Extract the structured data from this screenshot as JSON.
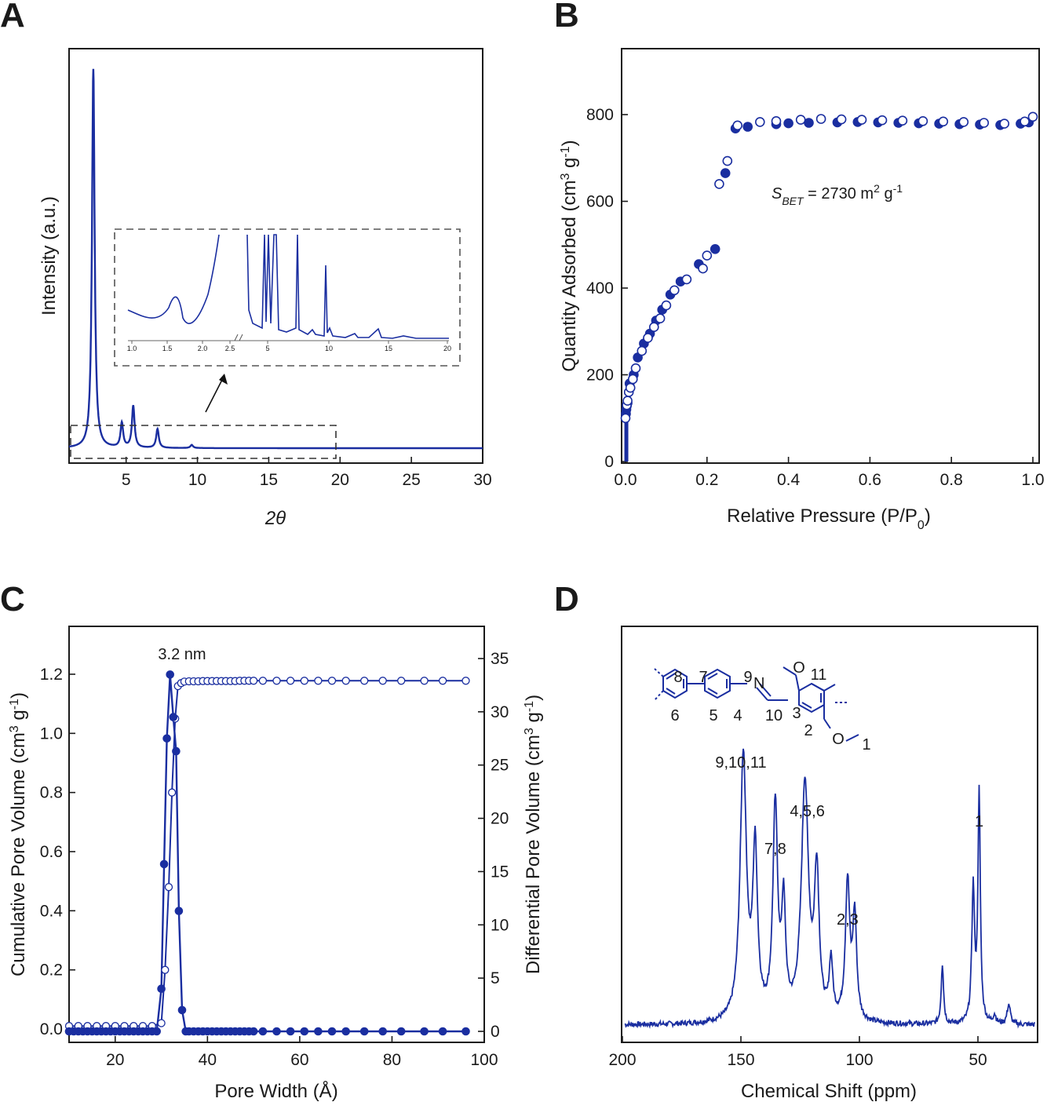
{
  "chart_data": [
    {
      "panel": "A",
      "type": "line",
      "xlabel": "2θ",
      "ylabel": "Intensity (a.u.)",
      "xlim": [
        1,
        30
      ],
      "xticks": [
        5,
        10,
        15,
        20,
        25,
        30
      ],
      "series_color": "#1a2ea0",
      "peaks": [
        {
          "x": 2.7,
          "h": 0.96
        },
        {
          "x": 4.7,
          "h": 0.062
        },
        {
          "x": 5.5,
          "h": 0.106
        },
        {
          "x": 7.2,
          "h": 0.048
        },
        {
          "x": 9.6,
          "h": 0.008
        }
      ],
      "baseline": 0.0,
      "inset": {
        "tick_labels": [
          "1.0",
          "1.5",
          "2.0",
          "2.5",
          "5",
          "10",
          "15",
          "20"
        ]
      }
    },
    {
      "panel": "B",
      "type": "scatter",
      "xlabel": "Relative Pressure (P/P0)",
      "ylabel": "Quantity Adsorbed (cm3 g-1)",
      "xlim": [
        0,
        1.0
      ],
      "ylim": [
        0,
        950
      ],
      "xticks": [
        0.0,
        0.2,
        0.4,
        0.6,
        0.8,
        1.0
      ],
      "yticks": [
        0,
        200,
        400,
        600,
        800
      ],
      "annotation": {
        "s": "S",
        "sub": "BET",
        "text": " = 2730 m",
        "sup": "2",
        "text2": " g",
        "sup2": "-1"
      },
      "series": [
        {
          "kind": "adsorption",
          "filled": true,
          "points": [
            [
              0.001,
              110
            ],
            [
              0.002,
              120
            ],
            [
              0.003,
              128
            ],
            [
              0.005,
              135
            ],
            [
              0.01,
              180
            ],
            [
              0.02,
              200
            ],
            [
              0.03,
              240
            ],
            [
              0.045,
              272
            ],
            [
              0.06,
              295
            ],
            [
              0.075,
              325
            ],
            [
              0.09,
              350
            ],
            [
              0.11,
              385
            ],
            [
              0.135,
              415
            ],
            [
              0.18,
              455
            ],
            [
              0.22,
              490
            ],
            [
              0.245,
              665
            ],
            [
              0.27,
              768
            ],
            [
              0.3,
              772
            ],
            [
              0.37,
              778
            ],
            [
              0.4,
              780
            ],
            [
              0.45,
              781
            ],
            [
              0.52,
              782
            ],
            [
              0.57,
              783
            ],
            [
              0.62,
              782
            ],
            [
              0.67,
              781
            ],
            [
              0.72,
              780
            ],
            [
              0.77,
              779
            ],
            [
              0.82,
              778
            ],
            [
              0.87,
              777
            ],
            [
              0.92,
              776
            ],
            [
              0.97,
              779
            ],
            [
              0.99,
              782
            ]
          ]
        },
        {
          "kind": "desorption",
          "filled": false,
          "points": [
            [
              0.0,
              100
            ],
            [
              0.003,
              130
            ],
            [
              0.005,
              140
            ],
            [
              0.008,
              160
            ],
            [
              0.012,
              170
            ],
            [
              0.018,
              190
            ],
            [
              0.025,
              215
            ],
            [
              0.04,
              255
            ],
            [
              0.055,
              285
            ],
            [
              0.07,
              310
            ],
            [
              0.085,
              330
            ],
            [
              0.1,
              360
            ],
            [
              0.12,
              395
            ],
            [
              0.15,
              420
            ],
            [
              0.19,
              445
            ],
            [
              0.2,
              475
            ],
            [
              0.23,
              640
            ],
            [
              0.25,
              693
            ],
            [
              0.275,
              775
            ],
            [
              0.33,
              783
            ],
            [
              0.37,
              785
            ],
            [
              0.43,
              788
            ],
            [
              0.48,
              790
            ],
            [
              0.53,
              789
            ],
            [
              0.58,
              788
            ],
            [
              0.63,
              787
            ],
            [
              0.68,
              786
            ],
            [
              0.73,
              785
            ],
            [
              0.78,
              784
            ],
            [
              0.83,
              783
            ],
            [
              0.88,
              781
            ],
            [
              0.93,
              779
            ],
            [
              0.98,
              784
            ],
            [
              1.0,
              795
            ]
          ]
        }
      ]
    },
    {
      "panel": "C",
      "type": "line",
      "xlabel": "Pore Width (Å)",
      "ylabel": "Cumulative Pore Volume (cm3 g-1)",
      "ylabel_right": "Differential Pore Volume (cm3 g-1)",
      "xlim": [
        10,
        100
      ],
      "ylim": [
        -0.03,
        1.35
      ],
      "ylim_right": [
        -0.8,
        37.9
      ],
      "xticks": [
        20,
        40,
        60,
        80,
        100
      ],
      "yticks": [
        0.0,
        0.2,
        0.4,
        0.6,
        0.8,
        1.0,
        1.2
      ],
      "yticks_right": [
        0,
        5,
        10,
        15,
        20,
        25,
        30,
        35
      ],
      "annotation": "3.2 nm",
      "series": [
        {
          "kind": "differential",
          "filled": true,
          "axis": "right",
          "points": [
            [
              10,
              0
            ],
            [
              11,
              0
            ],
            [
              12,
              0
            ],
            [
              13,
              0
            ],
            [
              14,
              0
            ],
            [
              15,
              0
            ],
            [
              16,
              0
            ],
            [
              17,
              0
            ],
            [
              18,
              0
            ],
            [
              19,
              0
            ],
            [
              20,
              0
            ],
            [
              21,
              0
            ],
            [
              22,
              0
            ],
            [
              23,
              0
            ],
            [
              24,
              0
            ],
            [
              25,
              0
            ],
            [
              26,
              0
            ],
            [
              27,
              0
            ],
            [
              28,
              0
            ],
            [
              29,
              0
            ],
            [
              30,
              4
            ],
            [
              30.6,
              15.7
            ],
            [
              31.2,
              27.5
            ],
            [
              31.9,
              33.5
            ],
            [
              32.6,
              29.5
            ],
            [
              33.2,
              26.3
            ],
            [
              33.8,
              11.3
            ],
            [
              34.5,
              2.0
            ],
            [
              35.3,
              0
            ],
            [
              36,
              0
            ],
            [
              37,
              0
            ],
            [
              38,
              0
            ],
            [
              39,
              0
            ],
            [
              40,
              0
            ],
            [
              41,
              0
            ],
            [
              42,
              0
            ],
            [
              43,
              0
            ],
            [
              44,
              0
            ],
            [
              45,
              0
            ],
            [
              46,
              0
            ],
            [
              47,
              0
            ],
            [
              48,
              0
            ],
            [
              49,
              0
            ],
            [
              50,
              0
            ],
            [
              52,
              0
            ],
            [
              55,
              0
            ],
            [
              58,
              0
            ],
            [
              61,
              0
            ],
            [
              64,
              0
            ],
            [
              67,
              0
            ],
            [
              70,
              0
            ],
            [
              74,
              0
            ],
            [
              78,
              0
            ],
            [
              82,
              0
            ],
            [
              87,
              0
            ],
            [
              91,
              0
            ],
            [
              96,
              0
            ]
          ]
        },
        {
          "kind": "cumulative",
          "filled": false,
          "axis": "left",
          "points": [
            [
              10,
              0.01
            ],
            [
              12,
              0.01
            ],
            [
              14,
              0.01
            ],
            [
              16,
              0.01
            ],
            [
              18,
              0.01
            ],
            [
              20,
              0.01
            ],
            [
              22,
              0.01
            ],
            [
              24,
              0.01
            ],
            [
              26,
              0.01
            ],
            [
              28,
              0.01
            ],
            [
              30,
              0.02
            ],
            [
              30.8,
              0.2
            ],
            [
              31.6,
              0.48
            ],
            [
              32.3,
              0.8
            ],
            [
              33.0,
              1.05
            ],
            [
              33.6,
              1.16
            ],
            [
              34.3,
              1.17
            ],
            [
              35,
              1.175
            ],
            [
              36,
              1.176
            ],
            [
              37,
              1.176
            ],
            [
              38,
              1.176
            ],
            [
              39,
              1.177
            ],
            [
              40,
              1.177
            ],
            [
              41,
              1.177
            ],
            [
              42,
              1.177
            ],
            [
              43,
              1.177
            ],
            [
              44,
              1.177
            ],
            [
              45,
              1.177
            ],
            [
              46,
              1.177
            ],
            [
              47,
              1.178
            ],
            [
              48,
              1.178
            ],
            [
              49,
              1.178
            ],
            [
              50,
              1.178
            ],
            [
              52,
              1.178
            ],
            [
              55,
              1.178
            ],
            [
              58,
              1.178
            ],
            [
              61,
              1.178
            ],
            [
              64,
              1.178
            ],
            [
              67,
              1.178
            ],
            [
              70,
              1.178
            ],
            [
              74,
              1.178
            ],
            [
              78,
              1.178
            ],
            [
              82,
              1.178
            ],
            [
              87,
              1.178
            ],
            [
              91,
              1.178
            ],
            [
              96,
              1.178
            ]
          ]
        }
      ]
    },
    {
      "panel": "D",
      "type": "line",
      "xlabel": "Chemical Shift (ppm)",
      "xlim": [
        200,
        25
      ],
      "xticks": [
        200,
        150,
        100,
        50
      ],
      "series_color": "#1a2ea0",
      "peaks": [
        {
          "ppm": 149,
          "h": 0.93,
          "w": 1.6
        },
        {
          "ppm": 144,
          "h": 0.58,
          "w": 1.2
        },
        {
          "ppm": 135.5,
          "h": 0.74,
          "w": 1.2
        },
        {
          "ppm": 132,
          "h": 0.38,
          "w": 1.0
        },
        {
          "ppm": 123,
          "h": 0.83,
          "w": 1.8
        },
        {
          "ppm": 118,
          "h": 0.5,
          "w": 1.2
        },
        {
          "ppm": 112,
          "h": 0.2,
          "w": 0.9
        },
        {
          "ppm": 105,
          "h": 0.48,
          "w": 1.1
        },
        {
          "ppm": 102,
          "h": 0.36,
          "w": 1.0
        },
        {
          "ppm": 65,
          "h": 0.21,
          "w": 0.6
        },
        {
          "ppm": 52,
          "h": 0.47,
          "w": 0.7
        },
        {
          "ppm": 49.5,
          "h": 0.8,
          "w": 0.6
        },
        {
          "ppm": 43,
          "h": 0.03,
          "w": 0.7
        },
        {
          "ppm": 37,
          "h": 0.07,
          "w": 0.8
        }
      ],
      "peak_labels": [
        {
          "text": "9,10,11",
          "ppm": 150
        },
        {
          "text": "7,8",
          "ppm": 135.5
        },
        {
          "text": "4,5,6",
          "ppm": 122
        },
        {
          "text": "2,3",
          "ppm": 105
        },
        {
          "text": "1",
          "ppm": 49.5
        }
      ],
      "structure_labels": [
        "8",
        "7",
        "9",
        "N",
        "O",
        "11",
        "6",
        "5",
        "4",
        "10",
        "3",
        "2",
        "O",
        "1"
      ]
    }
  ],
  "panel_letters": [
    "A",
    "B",
    "C",
    "D"
  ]
}
